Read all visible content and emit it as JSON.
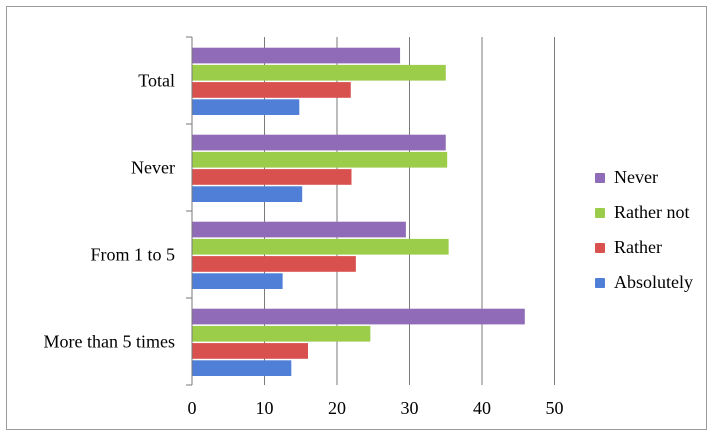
{
  "chart_data": {
    "type": "bar",
    "orientation": "horizontal",
    "categories": [
      "More than 5 times",
      "From 1 to 5",
      "Never",
      "Total"
    ],
    "series": [
      {
        "name": "Absolutely",
        "values": [
          13.7,
          12.5,
          15.2,
          14.8
        ],
        "color": "#4f7fd6"
      },
      {
        "name": "Rather",
        "values": [
          16.0,
          22.6,
          22.0,
          21.9
        ],
        "color": "#d9514e"
      },
      {
        "name": "Rather not",
        "values": [
          24.6,
          35.4,
          35.2,
          35.0
        ],
        "color": "#9bcc4a"
      },
      {
        "name": "Never",
        "values": [
          45.9,
          29.5,
          35.0,
          28.7
        ],
        "color": "#8f6bb8"
      }
    ],
    "xlim": [
      0,
      50
    ],
    "xticks": [
      "0",
      "10",
      "20",
      "30",
      "40",
      "50"
    ],
    "grid": "vertical",
    "legend": "right"
  }
}
